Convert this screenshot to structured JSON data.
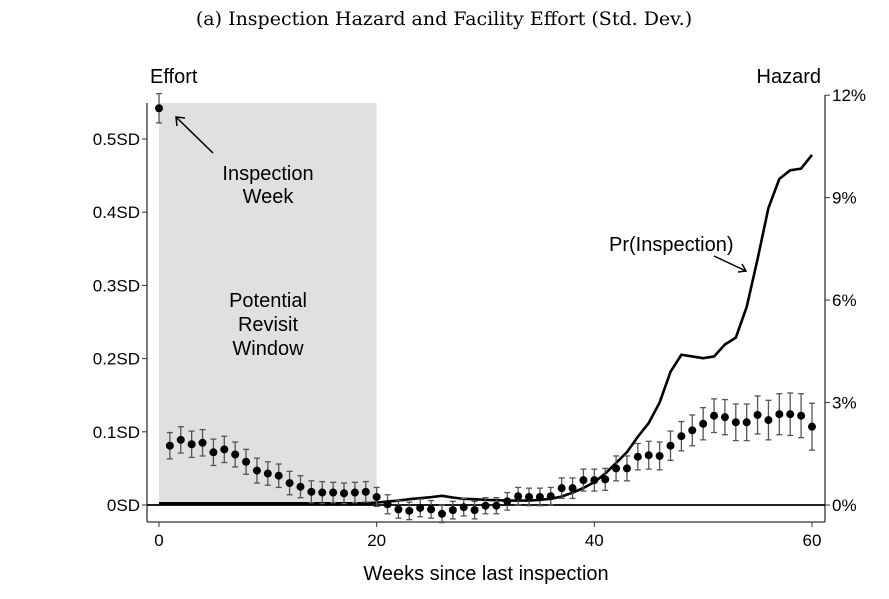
{
  "chart_data": {
    "type": "scatter+line",
    "title": "(a) Inspection Hazard and Facility Effort (Std. Dev.)",
    "xlabel": "Weeks since last inspection",
    "ylabel_left": "Effort",
    "ylabel_right": "Hazard",
    "xlim": [
      0,
      60
    ],
    "ylim_left": [
      -0.02,
      0.55
    ],
    "ylim_right": [
      0,
      12
    ],
    "x_ticks": [
      0,
      20,
      40,
      60
    ],
    "x_tick_labels": [
      "0",
      "20",
      "40",
      "60"
    ],
    "y_left_ticks": [
      0,
      0.1,
      0.2,
      0.3,
      0.4,
      0.5
    ],
    "y_left_tick_labels": [
      "0SD",
      "0.1SD",
      "0.2SD",
      "0.3SD",
      "0.4SD",
      "0.5SD"
    ],
    "y_right_ticks": [
      0,
      3,
      6,
      9,
      12
    ],
    "y_right_tick_labels": [
      "0%",
      "3%",
      "6%",
      "9%",
      "12%"
    ],
    "grid": false,
    "shaded_region": {
      "x": [
        0,
        20
      ],
      "label_lines": [
        "Potential",
        "Revisit",
        "Window"
      ]
    },
    "annotations": [
      {
        "lines": [
          "Inspection",
          "Week"
        ],
        "points_to_week": 0
      },
      {
        "lines": [
          "Pr(Inspection)"
        ],
        "points_to_week": 54
      }
    ],
    "effort": {
      "axis": "left",
      "x": [
        0,
        1,
        2,
        3,
        4,
        5,
        6,
        7,
        8,
        9,
        10,
        11,
        12,
        13,
        14,
        15,
        16,
        17,
        18,
        19,
        20,
        21,
        22,
        23,
        24,
        25,
        26,
        27,
        28,
        29,
        30,
        31,
        32,
        33,
        34,
        35,
        36,
        37,
        38,
        39,
        40,
        41,
        42,
        43,
        44,
        45,
        46,
        47,
        48,
        49,
        50,
        51,
        52,
        53,
        54,
        55,
        56,
        57,
        58,
        59,
        60
      ],
      "values": [
        0.542,
        0.081,
        0.089,
        0.083,
        0.085,
        0.072,
        0.076,
        0.069,
        0.059,
        0.047,
        0.043,
        0.04,
        0.03,
        0.025,
        0.018,
        0.017,
        0.017,
        0.016,
        0.017,
        0.018,
        0.011,
        0.001,
        -0.006,
        -0.008,
        -0.004,
        -0.006,
        -0.012,
        -0.007,
        -0.003,
        -0.007,
        -0.001,
        -0.001,
        0.005,
        0.012,
        0.011,
        0.011,
        0.012,
        0.023,
        0.023,
        0.034,
        0.034,
        0.035,
        0.05,
        0.05,
        0.066,
        0.068,
        0.067,
        0.081,
        0.094,
        0.102,
        0.111,
        0.122,
        0.12,
        0.113,
        0.113,
        0.123,
        0.116,
        0.124,
        0.124,
        0.122,
        0.107
      ],
      "ci_halfwidth": [
        0.02,
        0.018,
        0.018,
        0.018,
        0.018,
        0.018,
        0.018,
        0.017,
        0.017,
        0.017,
        0.016,
        0.016,
        0.016,
        0.015,
        0.015,
        0.015,
        0.014,
        0.014,
        0.014,
        0.014,
        0.013,
        0.013,
        0.012,
        0.012,
        0.012,
        0.012,
        0.012,
        0.012,
        0.012,
        0.012,
        0.011,
        0.011,
        0.012,
        0.012,
        0.012,
        0.012,
        0.012,
        0.014,
        0.014,
        0.015,
        0.015,
        0.015,
        0.017,
        0.017,
        0.018,
        0.019,
        0.019,
        0.02,
        0.02,
        0.021,
        0.022,
        0.023,
        0.024,
        0.025,
        0.025,
        0.026,
        0.027,
        0.028,
        0.029,
        0.03,
        0.032
      ],
      "color": "#000000",
      "errorbar_color": "#555555"
    },
    "hazard": {
      "axis": "right",
      "unit": "%",
      "x": [
        0,
        1,
        2,
        3,
        4,
        5,
        6,
        7,
        8,
        9,
        10,
        11,
        12,
        13,
        14,
        15,
        16,
        17,
        18,
        19,
        20,
        21,
        22,
        23,
        24,
        25,
        26,
        27,
        28,
        29,
        30,
        31,
        32,
        33,
        34,
        35,
        36,
        37,
        38,
        39,
        40,
        41,
        42,
        43,
        44,
        45,
        46,
        47,
        48,
        49,
        50,
        51,
        52,
        53,
        54,
        55,
        56,
        57,
        58,
        59,
        60
      ],
      "values": [
        0.05,
        0.05,
        0.05,
        0.05,
        0.05,
        0.05,
        0.05,
        0.05,
        0.05,
        0.05,
        0.05,
        0.05,
        0.05,
        0.05,
        0.05,
        0.05,
        0.05,
        0.05,
        0.05,
        0.05,
        0.07,
        0.1,
        0.13,
        0.17,
        0.2,
        0.23,
        0.27,
        0.22,
        0.18,
        0.17,
        0.15,
        0.14,
        0.13,
        0.13,
        0.13,
        0.15,
        0.18,
        0.25,
        0.36,
        0.5,
        0.67,
        0.92,
        1.23,
        1.55,
        2.0,
        2.4,
        3.0,
        3.9,
        4.4,
        4.35,
        4.3,
        4.35,
        4.7,
        4.9,
        5.8,
        7.2,
        8.7,
        9.55,
        9.8,
        9.85,
        10.25
      ],
      "color": "#000000"
    },
    "shade_color": "#e0e0e0"
  }
}
